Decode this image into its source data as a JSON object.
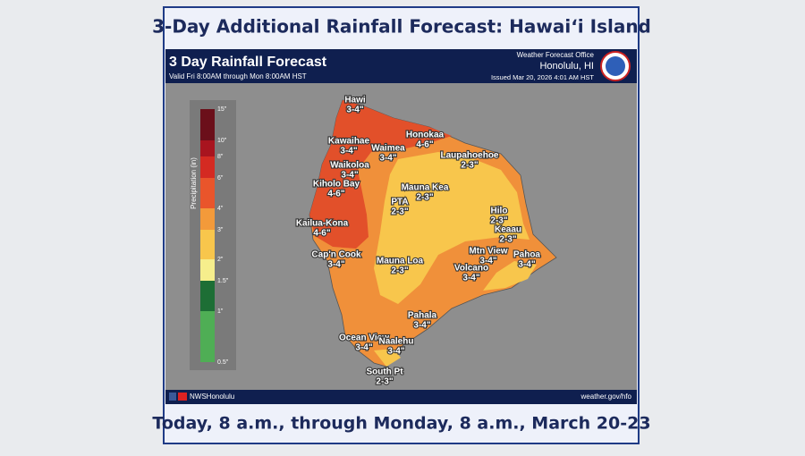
{
  "header": {
    "title": "3-Day Additional Rainfall Forecast: Hawaiʻi Island",
    "caption": "Today, 8 a.m., through Monday, 8 a.m., March 20-23"
  },
  "graphic": {
    "title": "3 Day Rainfall Forecast",
    "valid": "Valid Fri 8:00AM through Mon 8:00AM HST",
    "office": "Weather Forecast Office",
    "office_location": "Honolulu, HI",
    "issued": "Issued Mar 20, 2026 4:01 AM HST",
    "social": "NWSHonolulu",
    "website": "weather.gov/hfo"
  },
  "legend": {
    "title": "Precipitation (in)",
    "labels": [
      "15\"",
      "10\"",
      "8\"",
      "6\"",
      "4\"",
      "3\"",
      "2\"",
      "1.5\"",
      "1\"",
      "0.5\""
    ],
    "colors": [
      "#6b0f1a",
      "#a8141f",
      "#d42a22",
      "#e9552b",
      "#f39a3a",
      "#f8c64c",
      "#f6ee8c",
      "#1d6e35",
      "#3a9448",
      "#4fae55"
    ]
  },
  "locations": [
    {
      "name": "Hawi",
      "amount": "3-4\""
    },
    {
      "name": "Honokaa",
      "amount": "4-6\""
    },
    {
      "name": "Kawaihae",
      "amount": "3-4\""
    },
    {
      "name": "Waimea",
      "amount": "3-4\""
    },
    {
      "name": "Laupahoehoe",
      "amount": "2-3\""
    },
    {
      "name": "Waikoloa",
      "amount": "3-4\""
    },
    {
      "name": "Kiholo Bay",
      "amount": "4-6\""
    },
    {
      "name": "Mauna Kea",
      "amount": "2-3\""
    },
    {
      "name": "PTA",
      "amount": "2-3\""
    },
    {
      "name": "Hilo",
      "amount": "2-3\""
    },
    {
      "name": "Kailua-Kona",
      "amount": "4-6\""
    },
    {
      "name": "Keaau",
      "amount": "2-3\""
    },
    {
      "name": "Cap'n Cook",
      "amount": "3-4\""
    },
    {
      "name": "Mauna Loa",
      "amount": "2-3\""
    },
    {
      "name": "Mtn View",
      "amount": "3-4\""
    },
    {
      "name": "Pahoa",
      "amount": "3-4\""
    },
    {
      "name": "Volcano",
      "amount": "3-4\""
    },
    {
      "name": "Pahala",
      "amount": "3-4\""
    },
    {
      "name": "Ocean View",
      "amount": "3-4\""
    },
    {
      "name": "Naalehu",
      "amount": "3-4\""
    },
    {
      "name": "South Pt",
      "amount": "2-3\""
    }
  ]
}
